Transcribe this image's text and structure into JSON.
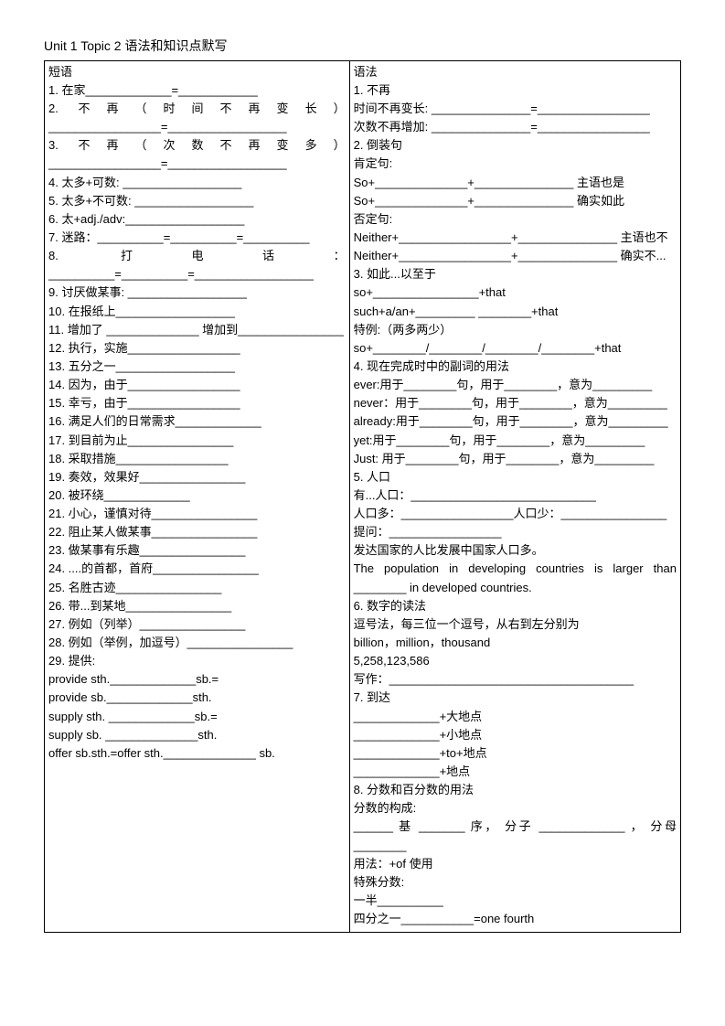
{
  "title": "Unit 1 Topic 2 语法和知识点默写",
  "left": {
    "header": "短语",
    "lines": [
      "1. 在家_____________=____________",
      "2. 不再（时间不再变长）_________________=__________________",
      "3. 不再（次数不再变多）_________________=__________________",
      "4. 太多+可数: __________________",
      "5. 太多+不可数: __________________",
      "6. 太+adj./adv:__________________",
      "7. 迷路：__________=__________=__________",
      "8. 打电话：__________=__________=__________________",
      "9. 讨厌做某事: __________________",
      "10. 在报纸上__________________",
      "11. 增加了 ______________ 增加到________________",
      "12. 执行，实施_________________",
      "13. 五分之一__________________",
      "14. 因为，由于_________________",
      "15. 幸亏，由于_________________",
      "16. 满足人们的日常需求_____________",
      "17. 到目前为止________________",
      "18. 采取措施_________________",
      "19. 奏效，效果好________________",
      "20. 被环绕_____________",
      "21. 小心，谨慎对待________________",
      "22. 阻止某人做某事________________",
      "23. 做某事有乐趣________________",
      "24. ....的首都，首府________________",
      "25. 名胜古迹________________",
      "26. 带...到某地________________",
      "27. 例如（列举）________________",
      "28. 例如（举例，加逗号）________________",
      "29. 提供:",
      "provide sth._____________sb.=",
      "provide sb._____________sth.",
      "supply sth. _____________sb.=",
      "supply sb. ______________sth.",
      "offer sb.sth.=offer sth.______________ sb."
    ]
  },
  "right": {
    "header": "语法",
    "lines": [
      "1. 不再",
      "时间不再变长: _______________=_________________",
      "次数不再增加: _______________=_________________",
      "2. 倒装句",
      "肯定句:",
      "So+______________+_______________ 主语也是",
      "So+______________+_______________ 确实如此",
      "否定句:",
      "Neither+_________________+_______________ 主语也不",
      "Neither+_________________+_______________ 确实不...",
      "3. 如此...以至于",
      "so+________________+that",
      "such+a/an+_________ ________+that",
      "特例:（两多两少）",
      "so+________/________/________/________+that",
      "4. 现在完成时中的副词的用法",
      "ever:用于________句，用于________，意为_________",
      "never：用于________句，用于________，意为_________",
      "already:用于________句，用于________，意为_________",
      "yet:用于________句，用于________，意为_________",
      "Just: 用于________句，用于________，意为_________",
      "5. 人口",
      "有...人口：____________________________",
      "人口多：_________________人口少：________________",
      "提问：_________________",
      "发达国家的人比发展中国家人口多。",
      "The population in developing countries is larger than ________ in developed countries.",
      "6. 数字的读法",
      "逗号法，每三位一个逗号，从右到左分别为",
      "billion，million，thousand",
      "5,258,123,586",
      "写作：_____________________________________",
      "7. 到达",
      "_____________+大地点",
      "_____________+小地点",
      "_____________+to+地点",
      "_____________+地点",
      "8. 分数和百分数的用法",
      "分数的构成:",
      "______ 基 _______ 序， 分子 _____________ ， 分母________",
      "用法：+of 使用",
      "特殊分数:",
      "一半__________",
      "四分之一___________=one fourth"
    ]
  }
}
